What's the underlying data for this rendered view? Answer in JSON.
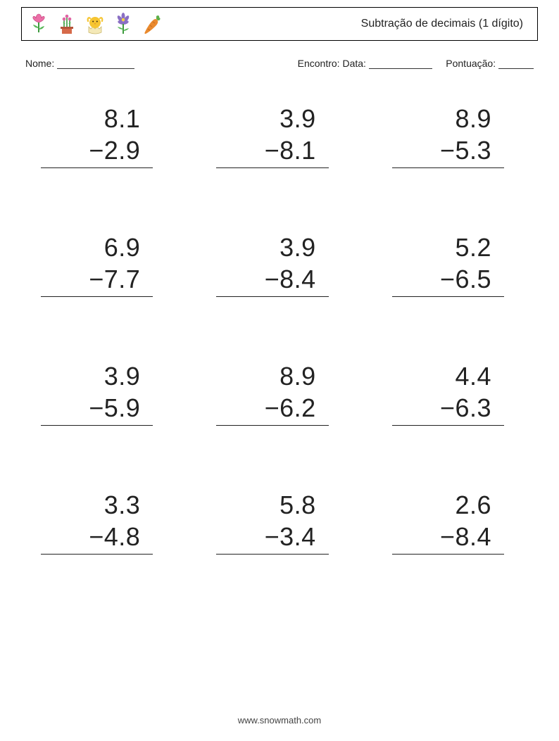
{
  "header": {
    "title": "Subtração de decimais (1 dígito)",
    "icons": [
      "tulip",
      "flower-pot",
      "chick-egg",
      "violet",
      "carrot"
    ]
  },
  "info": {
    "name_label": "Nome:",
    "date_label": "Encontro: Data:",
    "score_label": "Pontuação:",
    "name_blank_width": 110,
    "date_blank_width": 90,
    "score_blank_width": 50
  },
  "worksheet": {
    "type": "subtraction-vertical",
    "operator": "−",
    "columns": 3,
    "rows": 4,
    "font_size": 36,
    "text_color": "#222222",
    "rule_color": "#222222",
    "problems": [
      {
        "a": "8.1",
        "b": "2.9"
      },
      {
        "a": "3.9",
        "b": "8.1"
      },
      {
        "a": "8.9",
        "b": "5.3"
      },
      {
        "a": "6.9",
        "b": "7.7"
      },
      {
        "a": "3.9",
        "b": "8.4"
      },
      {
        "a": "5.2",
        "b": "6.5"
      },
      {
        "a": "3.9",
        "b": "5.9"
      },
      {
        "a": "8.9",
        "b": "6.2"
      },
      {
        "a": "4.4",
        "b": "6.3"
      },
      {
        "a": "3.3",
        "b": "4.8"
      },
      {
        "a": "5.8",
        "b": "3.4"
      },
      {
        "a": "2.6",
        "b": "8.4"
      }
    ]
  },
  "footer": {
    "text": "www.snowmath.com"
  },
  "colors": {
    "page_bg": "#ffffff",
    "border": "#000000",
    "text": "#222222"
  }
}
